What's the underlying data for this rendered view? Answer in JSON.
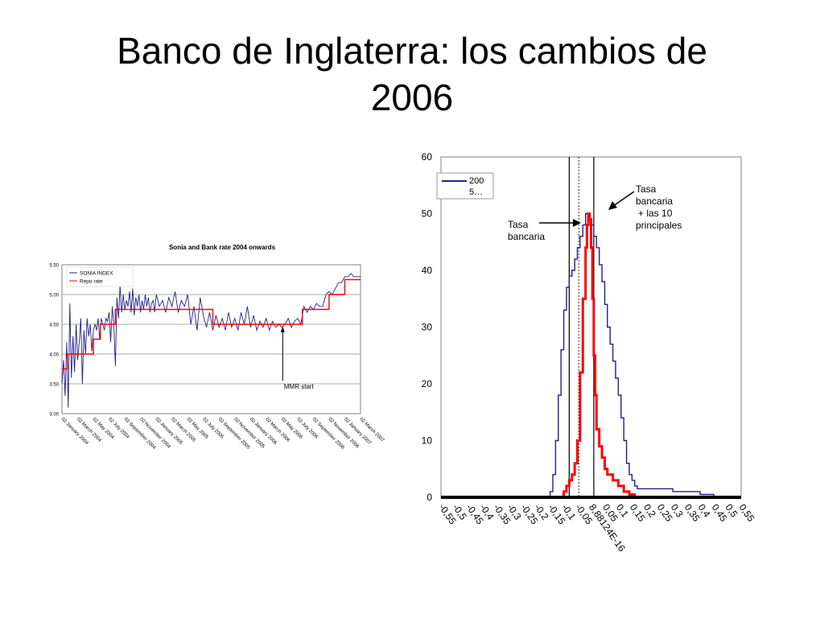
{
  "slide": {
    "title_line1": "Banco de Inglaterra: los cambios de",
    "title_line2": "2006"
  },
  "chart_data": [
    {
      "type": "line",
      "title": "Sonia and Bank rate 2004 onwards",
      "xlabel": "",
      "ylabel": "",
      "ylim": [
        3.0,
        5.5
      ],
      "yticks": [
        "3.00",
        "3.50",
        "4.00",
        "4.50",
        "5.00",
        "5.50"
      ],
      "xticks": [
        "02 January 2004",
        "02 March 2004",
        "02 May 2004",
        "02 July 2004",
        "02 September 2004",
        "02 November 2004",
        "02 January 2005",
        "02 March 2005",
        "02 May 2005",
        "02 July 2005",
        "02 September 2005",
        "02 November 2005",
        "02 January 2006",
        "02 March 2006",
        "02 May 2006",
        "02 July 2006",
        "02 September 2006",
        "02 November 2006",
        "02 January 2007",
        "02 March 2007"
      ],
      "grid": true,
      "legend": "top-left",
      "annotation": "MMR start",
      "annotation_x": 14.05,
      "annotation_y": 4.45,
      "series": [
        {
          "name": "SONIA INDEX",
          "color": "#1f1f8c",
          "x": [
            0.0,
            0.1,
            0.2,
            0.3,
            0.4,
            0.5,
            0.6,
            0.7,
            0.8,
            0.9,
            1.0,
            1.1,
            1.2,
            1.3,
            1.4,
            1.5,
            1.6,
            1.7,
            1.8,
            1.9,
            2.0,
            2.1,
            2.2,
            2.3,
            2.4,
            2.5,
            2.6,
            2.7,
            2.8,
            2.9,
            3.0,
            3.1,
            3.2,
            3.3,
            3.4,
            3.5,
            3.6,
            3.7,
            3.8,
            3.9,
            4.0,
            4.1,
            4.2,
            4.3,
            4.4,
            4.5,
            4.6,
            4.7,
            4.8,
            4.9,
            5.0,
            5.1,
            5.2,
            5.3,
            5.4,
            5.5,
            5.6,
            5.7,
            5.8,
            5.9,
            6.0,
            6.2,
            6.4,
            6.6,
            6.8,
            7.0,
            7.2,
            7.4,
            7.6,
            7.8,
            8.0,
            8.2,
            8.4,
            8.6,
            8.8,
            9.0,
            9.2,
            9.4,
            9.6,
            9.8,
            10.0,
            10.2,
            10.4,
            10.6,
            10.8,
            11.0,
            11.2,
            11.4,
            11.6,
            11.8,
            12.0,
            12.2,
            12.4,
            12.6,
            12.8,
            13.0,
            13.2,
            13.4,
            13.6,
            13.8,
            14.0,
            14.2,
            14.4,
            14.6,
            14.8,
            15.0,
            15.2,
            15.4,
            15.6,
            15.8,
            16.0,
            16.2,
            16.4,
            16.6,
            16.8,
            17.0,
            17.2,
            17.4,
            17.6,
            17.8,
            18.0,
            18.2,
            18.4,
            18.6,
            18.8,
            19.0
          ],
          "values": [
            3.5,
            3.9,
            3.3,
            4.2,
            3.1,
            4.85,
            3.6,
            4.3,
            3.7,
            4.5,
            3.9,
            4.2,
            4.6,
            3.5,
            4.4,
            4.0,
            4.6,
            4.3,
            4.5,
            4.05,
            4.4,
            4.5,
            4.4,
            4.6,
            4.25,
            4.6,
            4.5,
            4.4,
            4.6,
            4.55,
            4.7,
            4.2,
            4.8,
            4.5,
            3.8,
            4.95,
            4.6,
            5.15,
            4.7,
            5.0,
            4.75,
            4.9,
            4.8,
            5.05,
            4.7,
            5.1,
            4.65,
            4.95,
            4.8,
            5.0,
            4.7,
            4.9,
            4.75,
            5.0,
            4.8,
            4.95,
            4.7,
            4.85,
            4.9,
            4.7,
            5.0,
            4.8,
            4.9,
            4.7,
            4.95,
            4.8,
            5.05,
            4.7,
            4.9,
            4.8,
            5.0,
            4.5,
            4.8,
            4.4,
            4.95,
            4.65,
            4.45,
            4.7,
            4.4,
            4.65,
            4.45,
            4.6,
            4.4,
            4.7,
            4.45,
            4.6,
            4.4,
            4.7,
            4.5,
            4.8,
            4.45,
            4.65,
            4.4,
            4.55,
            4.45,
            4.6,
            4.4,
            4.55,
            4.45,
            4.5,
            4.45,
            4.5,
            4.6,
            4.45,
            4.55,
            4.6,
            4.5,
            4.8,
            4.7,
            4.8,
            4.75,
            4.85,
            4.8,
            4.8,
            5.0,
            5.05,
            5.0,
            5.1,
            5.2,
            5.2,
            5.3,
            5.3,
            5.35,
            5.3,
            5.3,
            5.3
          ]
        },
        {
          "name": "Repo rate",
          "color": "#ff0000",
          "x": [
            0.0,
            0.35,
            0.35,
            2.0,
            2.0,
            2.45,
            2.45,
            3.4,
            3.4,
            9.6,
            9.6,
            15.3,
            15.3,
            17.0,
            17.0,
            18.0,
            18.0,
            19.0
          ],
          "values": [
            3.75,
            3.75,
            4.0,
            4.0,
            4.25,
            4.25,
            4.5,
            4.5,
            4.75,
            4.75,
            4.5,
            4.5,
            4.75,
            4.75,
            5.0,
            5.0,
            5.25,
            5.25
          ]
        }
      ]
    },
    {
      "type": "line",
      "title": "",
      "xlabel": "",
      "ylabel": "",
      "ylim": [
        0,
        60
      ],
      "xlim": [
        -0.55,
        0.55
      ],
      "yticks": [
        "0",
        "10",
        "20",
        "30",
        "40",
        "50",
        "60"
      ],
      "xticks": [
        "-0,55",
        "-0,5",
        "-0,45",
        "-0,4",
        "-0,35",
        "-0,3",
        "-0,25",
        "-0,2",
        "-0,15",
        "-0,1",
        "-0,05",
        "8,88124E-16",
        "0,05",
        "0,1",
        "0,15",
        "0,2",
        "0,25",
        "0,3",
        "0,35",
        "0,4",
        "0,45",
        "0,5",
        "0,55"
      ],
      "grid": false,
      "legend": "top-left",
      "vlines": [
        -0.08,
        -0.045,
        0.01
      ],
      "annotations": [
        {
          "text_lines": [
            "Tasa",
            "bancaria"
          ]
        },
        {
          "text_lines": [
            "Tasa",
            "bancaria",
            "+ las 10",
            "principales"
          ]
        }
      ],
      "series": [
        {
          "name": "2005…",
          "name_lines": [
            "200",
            "5…"
          ],
          "color": "#1f1f8c",
          "x": [
            -0.55,
            -0.16,
            -0.15,
            -0.14,
            -0.13,
            -0.12,
            -0.11,
            -0.1,
            -0.09,
            -0.08,
            -0.07,
            -0.06,
            -0.05,
            -0.04,
            -0.03,
            -0.02,
            -0.01,
            0.0,
            0.01,
            0.02,
            0.03,
            0.04,
            0.05,
            0.06,
            0.07,
            0.08,
            0.09,
            0.1,
            0.11,
            0.12,
            0.13,
            0.14,
            0.15,
            0.16,
            0.17,
            0.18,
            0.2,
            0.25,
            0.3,
            0.35,
            0.4,
            0.45,
            0.5,
            0.55
          ],
          "values": [
            0,
            0,
            1,
            4,
            10,
            18,
            26,
            33,
            37,
            39,
            40,
            42,
            44,
            46,
            48,
            50,
            49,
            48,
            46,
            44,
            41,
            38,
            34,
            30,
            27,
            24,
            21,
            18,
            14,
            10,
            6,
            4,
            3,
            2,
            1.5,
            1.5,
            1.5,
            1.5,
            1,
            1,
            0.5,
            0,
            0,
            0
          ]
        },
        {
          "name": "Tasa bancaria + las 10 principales",
          "color": "#ff0000",
          "x": [
            -0.55,
            -0.11,
            -0.1,
            -0.09,
            -0.08,
            -0.07,
            -0.06,
            -0.05,
            -0.04,
            -0.03,
            -0.02,
            -0.015,
            -0.01,
            -0.005,
            0.0,
            0.005,
            0.01,
            0.015,
            0.02,
            0.03,
            0.04,
            0.05,
            0.06,
            0.08,
            0.1,
            0.12,
            0.14,
            0.16,
            0.55
          ],
          "values": [
            0,
            0,
            1,
            2,
            3,
            4,
            6,
            10,
            22,
            35,
            44,
            48,
            50,
            49,
            44,
            35,
            25,
            18,
            12,
            9,
            7,
            5,
            4,
            3,
            2,
            1,
            0.5,
            0,
            0
          ]
        }
      ]
    }
  ]
}
